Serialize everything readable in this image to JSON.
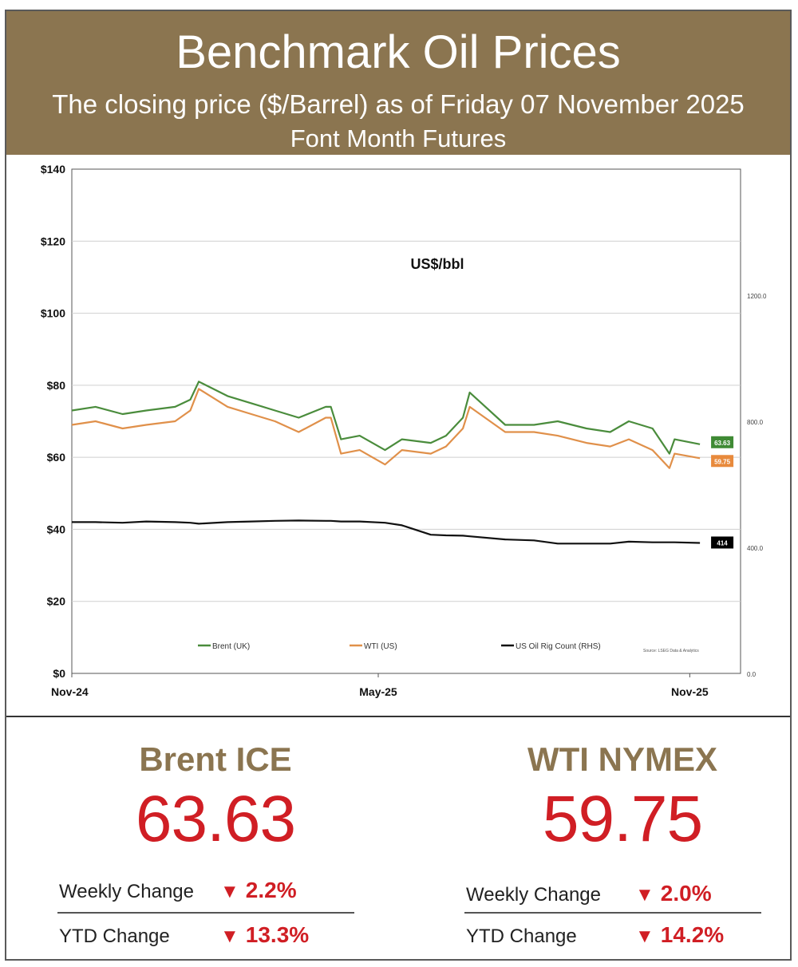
{
  "header": {
    "title": "Benchmark Oil Prices",
    "subtitle": "The closing price ($/Barrel) as of Friday 07 November 2025",
    "subtitle2": "Font Month  Futures"
  },
  "chart_data": {
    "type": "line",
    "title": "US$/bbl",
    "ylim": [
      0,
      140
    ],
    "y2lim": [
      0,
      1600
    ],
    "yticks": [
      "$0",
      "$20",
      "$40",
      "$60",
      "$80",
      "$100",
      "$120",
      "$140"
    ],
    "y2ticks": [
      "0.0",
      "400.0",
      "800.0",
      "1200.0"
    ],
    "xticks": [
      "Nov-24",
      "May-25",
      "Nov-25"
    ],
    "x": [
      "2024-11-01",
      "2024-11-15",
      "2024-12-01",
      "2024-12-15",
      "2025-01-01",
      "2025-01-10",
      "2025-01-15",
      "2025-02-01",
      "2025-02-15",
      "2025-03-01",
      "2025-03-15",
      "2025-03-31",
      "2025-04-03",
      "2025-04-09",
      "2025-04-20",
      "2025-05-05",
      "2025-05-15",
      "2025-06-01",
      "2025-06-10",
      "2025-06-20",
      "2025-06-24",
      "2025-07-15",
      "2025-08-01",
      "2025-08-15",
      "2025-09-01",
      "2025-09-15",
      "2025-09-26",
      "2025-10-10",
      "2025-10-20",
      "2025-10-23",
      "2025-11-07"
    ],
    "series": [
      {
        "name": "Brent (UK)",
        "axis": "left",
        "color": "#4a8c3c",
        "values": [
          73,
          74,
          72,
          73,
          74,
          76,
          81,
          77,
          75,
          73,
          71,
          74,
          74,
          65,
          66,
          62,
          65,
          64,
          66,
          71,
          78,
          69,
          69,
          70,
          68,
          67,
          70,
          68,
          61,
          65,
          63.63
        ]
      },
      {
        "name": "WTI (US)",
        "axis": "left",
        "color": "#e0904a",
        "values": [
          69,
          70,
          68,
          69,
          70,
          73,
          79,
          74,
          72,
          70,
          67,
          71,
          71,
          61,
          62,
          58,
          62,
          61,
          63,
          68,
          74,
          67,
          67,
          66,
          64,
          63,
          65,
          62,
          57,
          61,
          59.75
        ]
      },
      {
        "name": "US Oil Rig Count (RHS)",
        "axis": "right",
        "color": "#111111",
        "values": [
          480,
          480,
          478,
          482,
          480,
          478,
          475,
          480,
          482,
          484,
          485,
          484,
          484,
          482,
          482,
          478,
          470,
          440,
          438,
          437,
          435,
          425,
          422,
          412,
          412,
          412,
          418,
          416,
          416,
          416,
          414
        ]
      }
    ],
    "end_labels": {
      "brent": "63.63",
      "wti": "59.75",
      "rig": "414"
    },
    "source": "Source: LSEG Data & Analytics",
    "legend_position": "bottom"
  },
  "brent": {
    "name": "Brent ICE",
    "price": "63.63",
    "weekly_label": "Weekly Change",
    "weekly_value": "2.2%",
    "ytd_label": "YTD Change",
    "ytd_value": "13.3%"
  },
  "wti": {
    "name": "WTI NYMEX",
    "price": "59.75",
    "weekly_label": "Weekly Change",
    "weekly_value": "2.0%",
    "ytd_label": "YTD Change",
    "ytd_value": "14.2%"
  },
  "colors": {
    "header_bg": "#8b7550",
    "down": "#d01e24",
    "brent": "#4a8c3c",
    "wti": "#e0904a"
  },
  "icons": {
    "down": "down-triangle-icon"
  }
}
